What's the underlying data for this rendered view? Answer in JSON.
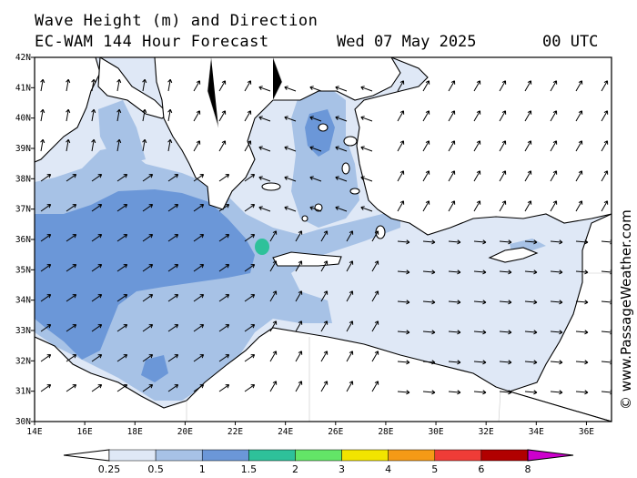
{
  "title": {
    "line1": "Wave Height (m) and Direction",
    "model": "EC-WAM 144 Hour Forecast",
    "date": "Wed 07 May 2025",
    "time": "00 UTC"
  },
  "watermark": "© www.PassageWeather.com",
  "axes": {
    "lon_labels": [
      "14E",
      "16E",
      "18E",
      "20E",
      "22E",
      "24E",
      "26E",
      "28E",
      "30E",
      "32E",
      "34E",
      "36E"
    ],
    "lat_labels": [
      "30N",
      "31N",
      "32N",
      "33N",
      "34N",
      "35N",
      "36N",
      "37N",
      "38N",
      "39N",
      "40N",
      "41N",
      "42N"
    ],
    "lon_range": [
      14,
      37
    ],
    "lat_range": [
      30,
      42
    ]
  },
  "legend": {
    "ticks": [
      "0.25",
      "0.5",
      "1",
      "1.5",
      "2",
      "3",
      "4",
      "5",
      "6",
      "8"
    ],
    "colors": [
      "#ffffff",
      "#dfe8f6",
      "#a7c2e6",
      "#6b97d8",
      "#2ec19a",
      "#63e567",
      "#f2e400",
      "#f59a16",
      "#ef3c37",
      "#b10000",
      "#cc00cc"
    ]
  },
  "colors": {
    "land": "#ffffff",
    "sea_025_05": "#dfe8f6",
    "sea_05_1": "#a7c2e6",
    "sea_1_15": "#6b97d8",
    "sea_15_2": "#2ec19a"
  }
}
